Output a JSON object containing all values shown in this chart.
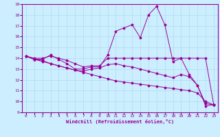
{
  "xlabel": "Windchill (Refroidissement éolien,°C)",
  "bg_color": "#cceeff",
  "line_color": "#990099",
  "grid_color": "#aaddee",
  "xlim": [
    -0.5,
    23.5
  ],
  "ylim": [
    9,
    19
  ],
  "xticks": [
    0,
    1,
    2,
    3,
    4,
    5,
    6,
    7,
    8,
    9,
    10,
    11,
    12,
    13,
    14,
    15,
    16,
    17,
    18,
    19,
    20,
    21,
    22,
    23
  ],
  "yticks": [
    9,
    10,
    11,
    12,
    13,
    14,
    15,
    16,
    17,
    18,
    19
  ],
  "line1_x": [
    0,
    1,
    2,
    3,
    4,
    5,
    6,
    7,
    8,
    9,
    10,
    11,
    12,
    13,
    14,
    15,
    16,
    17,
    18,
    19,
    20,
    21,
    22,
    23
  ],
  "line1_y": [
    14.2,
    13.9,
    13.9,
    14.3,
    13.9,
    13.5,
    13.0,
    13.0,
    13.2,
    13.2,
    14.3,
    16.5,
    16.8,
    17.1,
    15.9,
    18.0,
    18.8,
    17.1,
    13.7,
    14.0,
    12.5,
    11.5,
    9.6,
    9.7
  ],
  "line2_x": [
    0,
    1,
    2,
    3,
    4,
    5,
    6,
    7,
    8,
    9,
    10,
    11,
    12,
    13,
    14,
    15,
    16,
    17,
    18,
    19,
    20,
    21,
    22,
    23
  ],
  "line2_y": [
    14.2,
    14.0,
    14.0,
    14.2,
    14.0,
    13.8,
    13.5,
    13.2,
    13.3,
    13.3,
    14.0,
    14.0,
    14.0,
    14.0,
    14.0,
    14.0,
    14.0,
    14.0,
    14.0,
    14.0,
    14.0,
    14.0,
    14.0,
    9.7
  ],
  "line3_x": [
    0,
    1,
    2,
    3,
    4,
    5,
    6,
    7,
    8,
    9,
    10,
    11,
    12,
    13,
    14,
    15,
    16,
    17,
    18,
    19,
    20,
    21,
    22,
    23
  ],
  "line3_y": [
    14.2,
    13.9,
    13.7,
    13.5,
    13.3,
    13.1,
    12.9,
    12.7,
    12.5,
    12.3,
    12.1,
    11.9,
    11.8,
    11.7,
    11.6,
    11.5,
    11.4,
    11.3,
    11.2,
    11.1,
    11.0,
    10.8,
    10.0,
    9.7
  ],
  "line4_x": [
    0,
    1,
    2,
    3,
    4,
    5,
    6,
    7,
    8,
    9,
    10,
    11,
    12,
    13,
    14,
    15,
    16,
    17,
    18,
    19,
    20,
    21,
    22,
    23
  ],
  "line4_y": [
    14.2,
    13.9,
    13.8,
    13.5,
    13.3,
    13.1,
    12.9,
    12.8,
    13.0,
    13.1,
    13.4,
    13.5,
    13.3,
    13.2,
    13.0,
    12.8,
    12.6,
    12.4,
    12.2,
    12.5,
    12.3,
    11.5,
    9.8,
    9.7
  ]
}
